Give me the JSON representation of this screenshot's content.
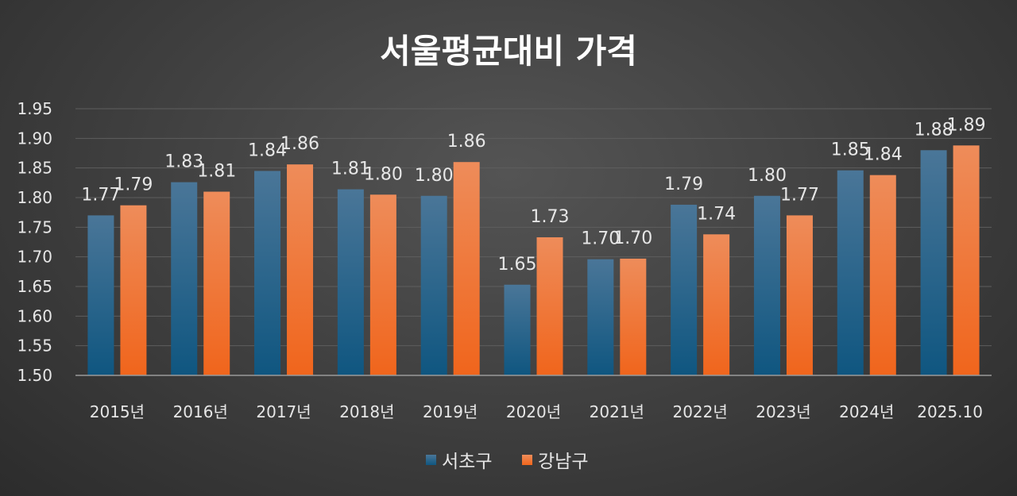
{
  "chart_data": {
    "type": "bar",
    "title": "서울평균대비 가격",
    "categories": [
      "2015년",
      "2016년",
      "2017년",
      "2018년",
      "2019년",
      "2020년",
      "2021년",
      "2022년",
      "2023년",
      "2024년",
      "2025.10"
    ],
    "series": [
      {
        "name": "서초구",
        "color": "#1f5a7e",
        "values": [
          1.77,
          1.826,
          1.845,
          1.814,
          1.803,
          1.653,
          1.696,
          1.788,
          1.803,
          1.846,
          1.88
        ],
        "labels": [
          "1.77",
          "1.83",
          "1.84",
          "1.81",
          "1.80",
          "1.65",
          "1.70",
          "1.79",
          "1.80",
          "1.85",
          "1.88"
        ]
      },
      {
        "name": "강남구",
        "color": "#ee6a27",
        "values": [
          1.787,
          1.81,
          1.856,
          1.805,
          1.86,
          1.733,
          1.697,
          1.738,
          1.77,
          1.838,
          1.888
        ],
        "labels": [
          "1.79",
          "1.81",
          "1.86",
          "1.80",
          "1.86",
          "1.73",
          "1.70",
          "1.74",
          "1.77",
          "1.84",
          "1.89"
        ]
      }
    ],
    "ylim": [
      1.5,
      1.95
    ],
    "yticks": [
      "1.50",
      "1.55",
      "1.60",
      "1.65",
      "1.70",
      "1.75",
      "1.80",
      "1.85",
      "1.90",
      "1.95"
    ],
    "xlabel": "",
    "ylabel": "",
    "grid": true,
    "legend": "bottom-center"
  }
}
